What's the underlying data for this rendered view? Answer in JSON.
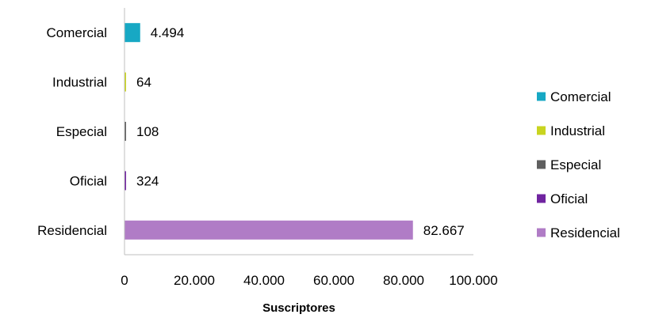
{
  "chart_data": {
    "type": "bar",
    "orientation": "horizontal",
    "categories": [
      "Comercial",
      "Industrial",
      "Especial",
      "Oficial",
      "Residencial"
    ],
    "values": [
      4494,
      64,
      108,
      324,
      82667
    ],
    "value_labels": [
      "4.494",
      "64",
      "108",
      "324",
      "82.667"
    ],
    "colors": [
      "#17a8c4",
      "#c9d420",
      "#5f5f5f",
      "#7024a0",
      "#b07cc6"
    ],
    "xlabel": "Suscriptores",
    "xlim": [
      0,
      100000
    ],
    "xticks": [
      0,
      20000,
      40000,
      60000,
      80000,
      100000
    ],
    "xtick_labels": [
      "0",
      "20.000",
      "40.000",
      "60.000",
      "80.000",
      "100.000"
    ],
    "grid": false,
    "legend": {
      "position": "right",
      "entries": [
        "Comercial",
        "Industrial",
        "Especial",
        "Oficial",
        "Residencial"
      ]
    }
  }
}
